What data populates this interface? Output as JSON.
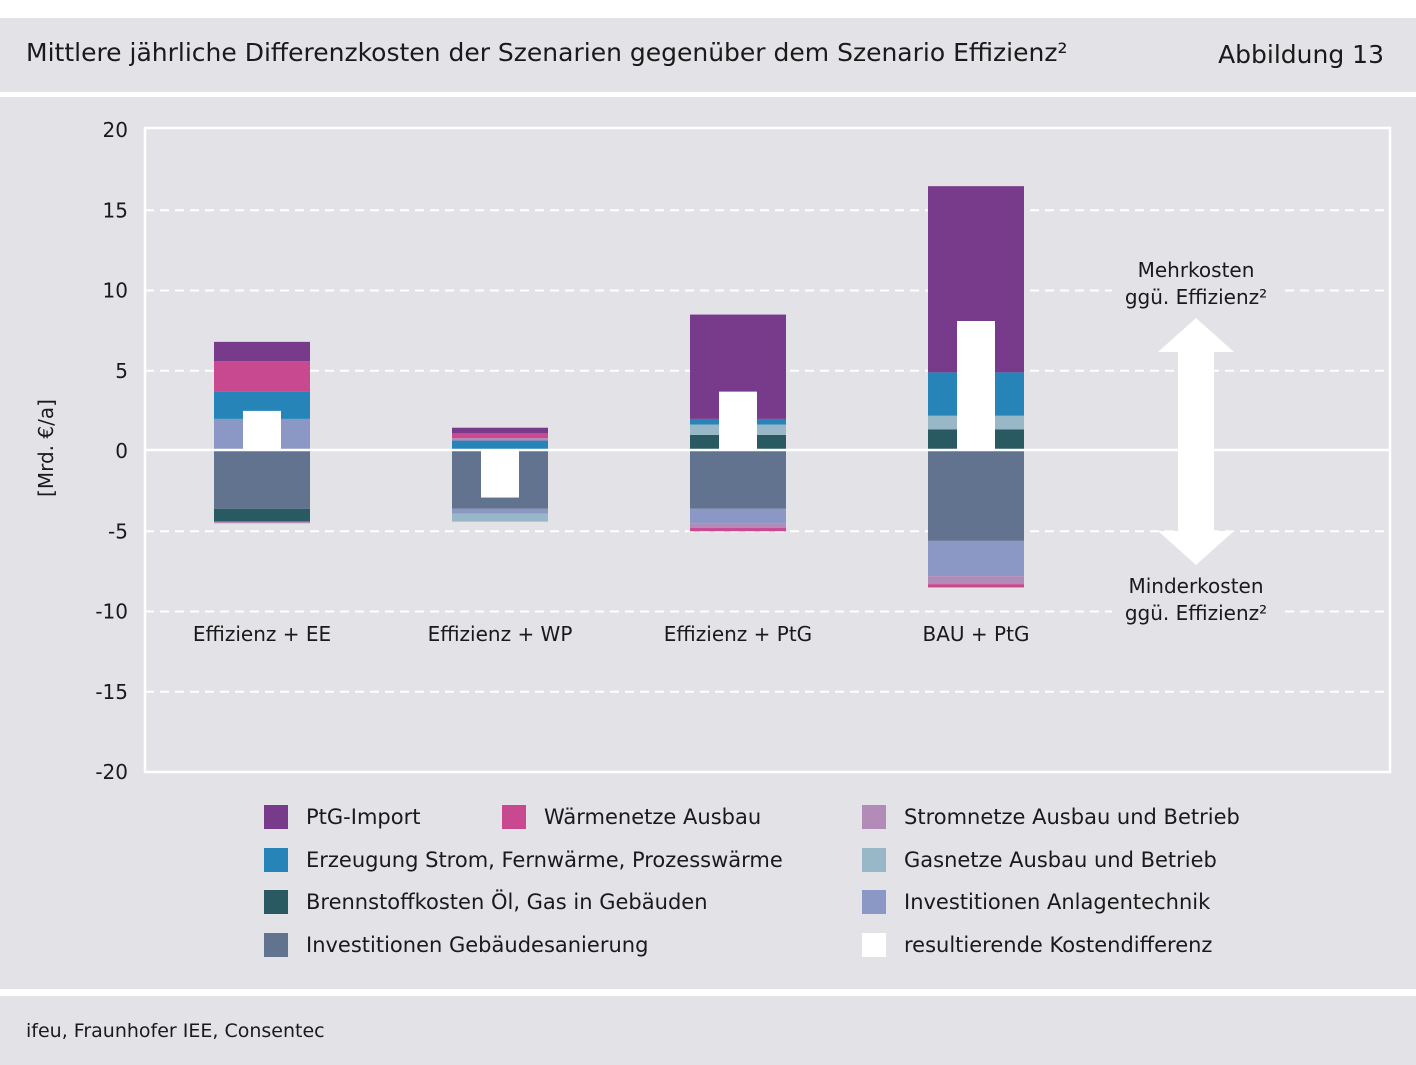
{
  "header": {
    "title": "Mittlere jährliche Differenzkosten der Szenarien gegenüber dem Szenario Effizienz²",
    "figure_number": "Abbildung 13"
  },
  "footer": {
    "source": "ifeu, Fraunhofer IEE, Consentec"
  },
  "annotations": {
    "upper": [
      "Mehrkosten",
      "ggü. Effizienz²"
    ],
    "lower": [
      "Minderkosten",
      "ggü. Effizienz²"
    ]
  },
  "colors": {
    "ptg_import": "#783a8a",
    "waermenetze": "#c84990",
    "erzeugung": "#2684b9",
    "brennstoff": "#295a61",
    "gebaeude": "#62738f",
    "stromnetze": "#b28bb8",
    "gasnetze": "#98b8c8",
    "anlagentechnik": "#8b97c5",
    "result": "#ffffff"
  },
  "chart_data": {
    "type": "bar",
    "stacked": true,
    "title": "Mittlere jährliche Differenzkosten der Szenarien gegenüber dem Szenario Effizienz²",
    "ylabel": "[Mrd. €/a]",
    "xlabel": "",
    "ylim": [
      -20,
      20
    ],
    "yticks": [
      20,
      15,
      10,
      5,
      0,
      -5,
      -10,
      -15,
      -20
    ],
    "grid": true,
    "categories": [
      "Effizienz + EE",
      "Effizienz + WP",
      "Effizienz + PtG",
      "BAU + PtG"
    ],
    "series": [
      {
        "key": "gebaeude",
        "name": "Investitionen Gebäudesanierung",
        "values": [
          -3.6,
          -3.6,
          -3.6,
          -5.6
        ]
      },
      {
        "key": "anlagentechnik",
        "name": "Investitionen Anlagentechnik",
        "values": [
          2.0,
          -0.3,
          -0.9,
          -2.2
        ]
      },
      {
        "key": "brennstoff",
        "name": "Brennstoffkosten Öl, Gas in Gebäuden",
        "values": [
          -0.8,
          0.0,
          1.0,
          1.35
        ]
      },
      {
        "key": "gasnetze",
        "name": "Gasnetze Ausbau und Betrieb",
        "values": [
          0.0,
          -0.5,
          0.65,
          0.85
        ]
      },
      {
        "key": "erzeugung",
        "name": "Erzeugung Strom, Fernwärme, Prozesswärme",
        "values": [
          1.7,
          0.65,
          0.35,
          2.7
        ]
      },
      {
        "key": "stromnetze",
        "name": "Stromnetze Ausbau und Betrieb",
        "values": [
          -0.1,
          0.15,
          -0.3,
          -0.5
        ]
      },
      {
        "key": "waermenetze",
        "name": "Wärmenetze Ausbau",
        "values": [
          1.9,
          0.3,
          -0.2,
          -0.2
        ]
      },
      {
        "key": "ptg_import",
        "name": "PtG-Import",
        "values": [
          1.2,
          0.35,
          6.5,
          11.6
        ]
      }
    ],
    "result": {
      "key": "result",
      "name": "resultierende Kostendifferenz",
      "values": [
        2.5,
        -2.9,
        3.7,
        8.1
      ]
    },
    "legend": [
      {
        "key": "ptg_import",
        "label": "PtG-Import"
      },
      {
        "key": "waermenetze",
        "label": "Wärmenetze Ausbau"
      },
      {
        "key": "stromnetze",
        "label": "Stromnetze Ausbau und Betrieb"
      },
      {
        "key": "erzeugung",
        "label": "Erzeugung Strom, Fernwärme, Prozesswärme"
      },
      {
        "key": "gasnetze",
        "label": "Gasnetze Ausbau und Betrieb"
      },
      {
        "key": "brennstoff",
        "label": "Brennstoffkosten Öl, Gas in Gebäuden"
      },
      {
        "key": "anlagentechnik",
        "label": "Investitionen Anlagentechnik"
      },
      {
        "key": "gebaeude",
        "label": "Investitionen Gebäudesanierung"
      },
      {
        "key": "result",
        "label": "resultierende Kostendifferenz"
      }
    ]
  }
}
